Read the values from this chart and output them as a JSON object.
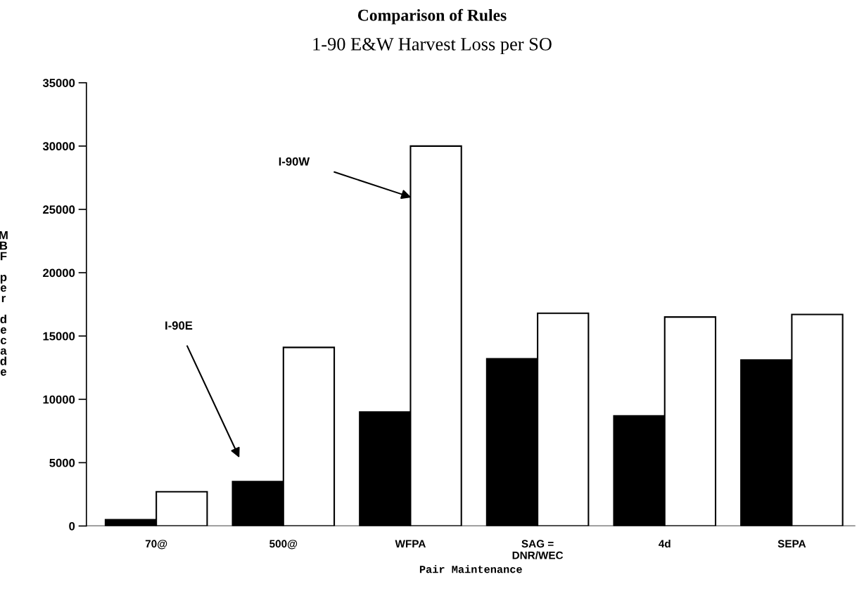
{
  "chart_data": {
    "type": "bar",
    "title": "Comparison of Rules",
    "subtitle": "1-90 E&W Harvest Loss per SO",
    "xlabel": "Pair Maintenance",
    "ylabel": "MBF per decade",
    "categories": [
      "70@",
      "500@",
      "WFPA",
      "SAG =\nDNR/WEC",
      "4d",
      "SEPA"
    ],
    "series": [
      {
        "color": "#000000",
        "values": [
          500,
          3500,
          9000,
          13200,
          8700,
          13100
        ]
      },
      {
        "color": "#ffffff",
        "values": [
          2700,
          14100,
          30000,
          16800,
          16500,
          16700
        ]
      }
    ],
    "ylim": [
      0,
      35000
    ],
    "yticks": [
      0,
      5000,
      10000,
      15000,
      20000,
      25000,
      30000,
      35000
    ],
    "annotations": [
      "I-90E",
      "I-90W"
    ],
    "grid": false,
    "legend": false
  }
}
